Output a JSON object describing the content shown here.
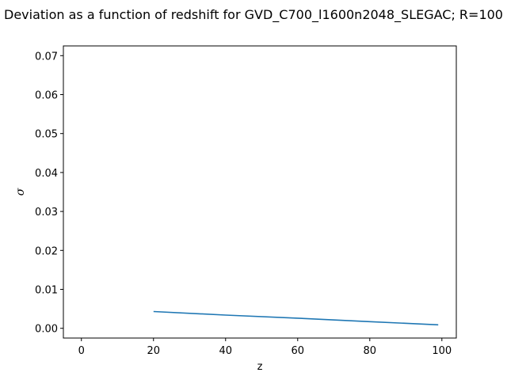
{
  "chart_data": {
    "type": "line",
    "title": "Deviation as a function of redshift for GVD_C700_l1600n2048_SLEGAC; R=100",
    "xlabel": "z",
    "ylabel": "σ",
    "xlim": [
      -5,
      104
    ],
    "ylim": [
      -0.0025,
      0.0725
    ],
    "x_ticks": [
      0,
      20,
      40,
      60,
      80,
      100
    ],
    "x_tick_labels": [
      "0",
      "20",
      "40",
      "60",
      "80",
      "100"
    ],
    "y_ticks": [
      0.0,
      0.01,
      0.02,
      0.03,
      0.04,
      0.05,
      0.06,
      0.07
    ],
    "y_tick_labels": [
      "0.00",
      "0.01",
      "0.02",
      "0.03",
      "0.04",
      "0.05",
      "0.06",
      "0.07"
    ],
    "grid": false,
    "series": [
      {
        "color": "#1f77b4",
        "x": [
          20,
          40,
          60,
          80,
          99
        ],
        "y": [
          0.0043,
          0.0034,
          0.0026,
          0.0017,
          0.0009
        ]
      }
    ]
  }
}
